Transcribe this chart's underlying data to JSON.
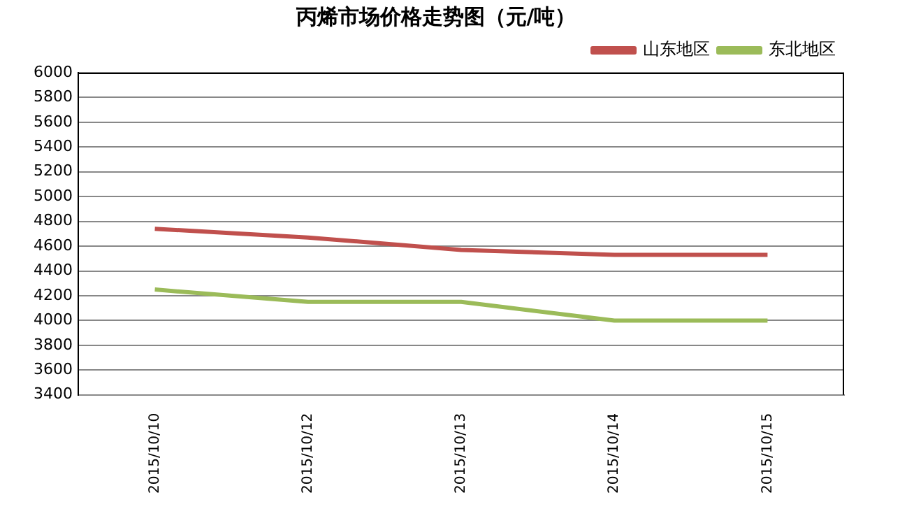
{
  "chart_data": {
    "type": "line",
    "title": "丙烯市场价格走势图（元/吨）",
    "categories": [
      "2015/10/10",
      "2015/10/12",
      "2015/10/13",
      "2015/10/14",
      "2015/10/15"
    ],
    "series": [
      {
        "name": "山东地区",
        "color": "#c0504d",
        "values": [
          4740,
          4670,
          4570,
          4530,
          4530
        ]
      },
      {
        "name": "东北地区",
        "color": "#9bbb59",
        "values": [
          4250,
          4150,
          4150,
          4000,
          4000
        ]
      }
    ],
    "ylim": [
      3400,
      6000
    ],
    "yticks": [
      3400,
      3600,
      3800,
      4000,
      4200,
      4400,
      4600,
      4800,
      5000,
      5200,
      5400,
      5600,
      5800,
      6000
    ],
    "grid": "y",
    "legend": "top right",
    "marker": "none",
    "line_style": "solid"
  }
}
